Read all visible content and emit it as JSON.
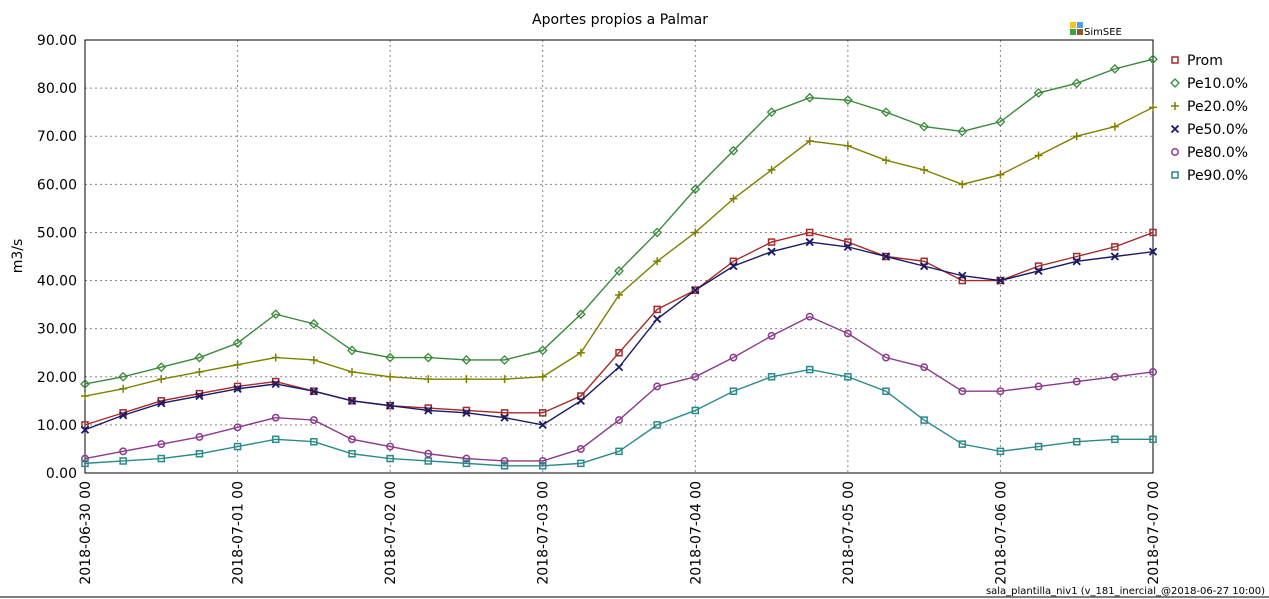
{
  "chart_data": {
    "type": "line",
    "title": "Aportes propios a Palmar",
    "ylabel": "m3/s",
    "xlabel": "",
    "ylim": [
      0,
      90
    ],
    "y_ticks": [
      "0.00",
      "10.00",
      "20.00",
      "30.00",
      "40.00",
      "50.00",
      "60.00",
      "70.00",
      "80.00",
      "90.00"
    ],
    "x_range": [
      "2018-06-30 00:00",
      "2018-07-07 00:00"
    ],
    "x_ticks": [
      "2018-06-30 00",
      "2018-07-01 00",
      "2018-07-02 00",
      "2018-07-03 00",
      "2018-07-04 00",
      "2018-07-05 00",
      "2018-07-06 00",
      "2018-07-07 00"
    ],
    "grid": true,
    "legend_position": "right",
    "x": [
      "2018-06-30 00:00",
      "2018-06-30 06:00",
      "2018-06-30 12:00",
      "2018-06-30 18:00",
      "2018-07-01 00:00",
      "2018-07-01 06:00",
      "2018-07-01 12:00",
      "2018-07-01 18:00",
      "2018-07-02 00:00",
      "2018-07-02 06:00",
      "2018-07-02 12:00",
      "2018-07-02 18:00",
      "2018-07-03 00:00",
      "2018-07-03 06:00",
      "2018-07-03 12:00",
      "2018-07-03 18:00",
      "2018-07-04 00:00",
      "2018-07-04 06:00",
      "2018-07-04 12:00",
      "2018-07-04 18:00",
      "2018-07-05 00:00",
      "2018-07-05 06:00",
      "2018-07-05 12:00",
      "2018-07-05 18:00",
      "2018-07-06 00:00",
      "2018-07-06 06:00",
      "2018-07-06 12:00",
      "2018-07-06 18:00",
      "2018-07-07 00:00"
    ],
    "series": [
      {
        "name": "Prom",
        "color": "#a52a2a",
        "marker": "square",
        "values": [
          10,
          12.5,
          15,
          16.5,
          18,
          19,
          17,
          15,
          14,
          13.5,
          13,
          12.5,
          12.5,
          16,
          25,
          34,
          38,
          44,
          48,
          50,
          48,
          45,
          44,
          40,
          40,
          43,
          45,
          47,
          50
        ]
      },
      {
        "name": "Pe10.0%",
        "color": "#3a8a3a",
        "marker": "diamond",
        "values": [
          18.5,
          20,
          22,
          24,
          27,
          33,
          31,
          25.5,
          24,
          24,
          23.5,
          23.5,
          25.5,
          33,
          42,
          50,
          59,
          67,
          75,
          78,
          77.5,
          75,
          72,
          71,
          73,
          79,
          81,
          84,
          86
        ]
      },
      {
        "name": "Pe20.0%",
        "color": "#808000",
        "marker": "plus",
        "values": [
          16,
          17.5,
          19.5,
          21,
          22.5,
          24,
          23.5,
          21,
          20,
          19.5,
          19.5,
          19.5,
          20,
          25,
          37,
          44,
          50,
          57,
          63,
          69,
          68,
          65,
          63,
          60,
          62,
          66,
          70,
          72,
          76
        ]
      },
      {
        "name": "Pe50.0%",
        "color": "#1a1a66",
        "marker": "cross",
        "values": [
          9,
          12,
          14.5,
          16,
          17.5,
          18.5,
          17,
          15,
          14,
          13,
          12.5,
          11.5,
          10,
          15,
          22,
          32,
          38,
          43,
          46,
          48,
          47,
          45,
          43,
          41,
          40,
          42,
          44,
          45,
          46
        ]
      },
      {
        "name": "Pe80.0%",
        "color": "#8b3a8b",
        "marker": "circle",
        "values": [
          3,
          4.5,
          6,
          7.5,
          9.5,
          11.5,
          11,
          7,
          5.5,
          4,
          3,
          2.5,
          2.5,
          5,
          11,
          18,
          20,
          24,
          28.5,
          32.5,
          29,
          24,
          22,
          17,
          17,
          18,
          19,
          20,
          21
        ]
      },
      {
        "name": "Pe90.0%",
        "color": "#2a8a8a",
        "marker": "square",
        "values": [
          2,
          2.5,
          3,
          4,
          5.5,
          7,
          6.5,
          4,
          3,
          2.5,
          2,
          1.5,
          1.5,
          2,
          4.5,
          10,
          13,
          17,
          20,
          21.5,
          20,
          17,
          11,
          6,
          4.5,
          5.5,
          6.5,
          7,
          7
        ]
      }
    ]
  },
  "logo": {
    "text": "SimSEE"
  },
  "footer": {
    "text": "sala_plantilla_niv1 (v_181_inercial_@2018-06-27 10:00)"
  }
}
